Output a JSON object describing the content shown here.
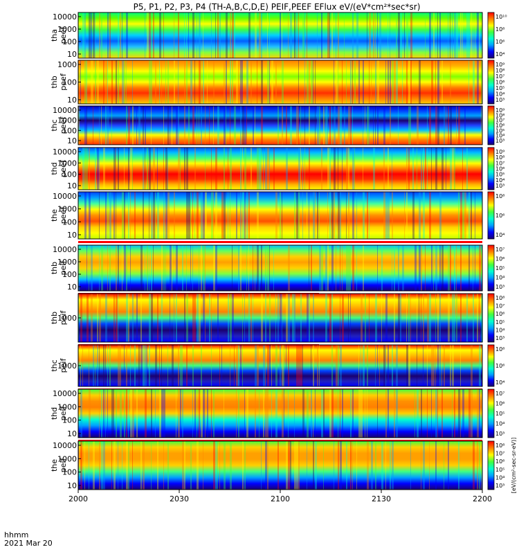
{
  "title": "P5, P1, P2, P3, P4 (TH-A,B,C,D,E) PEIF,PEEF EFlux eV/(eV*cm²*sec*sr)",
  "footer": {
    "hhmm": "hhmm",
    "date": "2021 Mar 20"
  },
  "colorbar_unit": "[eV/(cm²-sec-sr-eV)]",
  "chart_data": {
    "type": "heatmap",
    "x_ticks": [
      "2000",
      "2030",
      "2100",
      "2130",
      "2200"
    ],
    "xlim": [
      "2000",
      "2200"
    ],
    "panels": [
      {
        "probe": "tha",
        "product": "peef",
        "y_ticks": [
          "10000",
          "1000",
          "100",
          "10"
        ],
        "cbar_ticks": [
          "10¹⁰",
          "10⁸",
          "10⁶",
          "10⁴"
        ],
        "red_bar": null
      },
      {
        "probe": "thb",
        "product": "peef",
        "y_ticks": [
          "1000",
          "100",
          "10"
        ],
        "cbar_ticks": [
          "10⁹",
          "10⁸",
          "10⁷",
          "10⁶",
          "10⁵",
          "10⁴",
          "10³"
        ],
        "red_bar": null
      },
      {
        "probe": "thc",
        "product": "peef",
        "y_ticks": [
          "10000",
          "1000",
          "100",
          "10"
        ],
        "cbar_ticks": [
          "10⁹",
          "10⁸",
          "10⁷",
          "10⁶",
          "10⁵",
          "10⁴",
          "10³"
        ],
        "red_bar": null
      },
      {
        "probe": "thd",
        "product": "peef",
        "y_ticks": [
          "10000",
          "1000",
          "100",
          "10"
        ],
        "cbar_ticks": [
          "10⁹",
          "10⁸",
          "10⁷",
          "10⁶",
          "10⁵",
          "10⁴",
          "10³"
        ],
        "red_bar": null
      },
      {
        "probe": "the",
        "product": "peef",
        "y_ticks": [
          "10000",
          "1000",
          "100",
          "10"
        ],
        "cbar_ticks": [
          "10⁸",
          "10⁶",
          "10⁴"
        ],
        "red_bar": "full"
      },
      {
        "probe": "thb",
        "product": "peif",
        "y_ticks": [
          "10000",
          "1000",
          "100",
          "10"
        ],
        "cbar_ticks": [
          "10⁷",
          "10⁶",
          "10⁵",
          "10⁴",
          "10³"
        ],
        "red_bar": "half"
      },
      {
        "probe": "thb",
        "product": "peif",
        "y_ticks": [
          "1000"
        ],
        "cbar_ticks": [
          "10⁸",
          "10⁷",
          "10⁶",
          "10⁵",
          "10⁴",
          "10³"
        ],
        "red_bar": "half"
      },
      {
        "probe": "thc",
        "product": "peif",
        "y_ticks": [
          "1000"
        ],
        "cbar_ticks": [
          "10⁸",
          "10⁶",
          "10⁴"
        ],
        "red_bar": "full"
      },
      {
        "probe": "thd",
        "product": "peif",
        "y_ticks": [
          "10000",
          "1000",
          "100",
          "10"
        ],
        "cbar_ticks": [
          "10⁷",
          "10⁶",
          "10⁵",
          "10⁴",
          "10³"
        ],
        "red_bar": "full"
      },
      {
        "probe": "the",
        "product": "peif",
        "y_ticks": [
          "10000",
          "1000",
          "100",
          "10"
        ],
        "cbar_ticks": [
          "10⁸",
          "10⁷",
          "10⁶",
          "10⁵",
          "10⁴",
          "10³"
        ],
        "red_bar": null
      }
    ],
    "colormap": [
      "#1a0070",
      "#0000ff",
      "#00a0ff",
      "#00ffd0",
      "#40ff40",
      "#ffff00",
      "#ff8000",
      "#ff0000"
    ]
  }
}
